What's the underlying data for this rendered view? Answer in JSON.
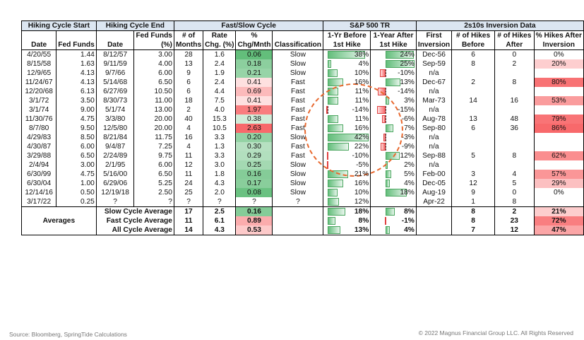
{
  "headers": {
    "hiking_start": "Hiking Cycle Start",
    "hiking_end": "Hiking Cycle End",
    "fast_slow": "Fast/Slow Cycle",
    "sp500": "S&P 500 TR",
    "inversion": "2s10s Inversion Data",
    "fed_funds_top": "Fed Funds",
    "num_of": "# of",
    "rate": "Rate",
    "pct": "%",
    "yr_before": "1-Yr Before",
    "yr_after": "1-Year After",
    "first": "First",
    "hikes_before_top": "# of Hikes",
    "hikes_after_top": "# of Hikes",
    "pct_hikes_after": "% Hikes After",
    "date": "Date",
    "fed_funds": "Fed Funds",
    "date2": "Date",
    "fed_funds_pct": "(%)",
    "months": "Months",
    "chg_pct": "Chg. (%)",
    "chg_mnth": "Chg/Mnth",
    "classification": "Classification",
    "first_hike_a": "1st Hike",
    "first_hike_b": "1st Hike",
    "inversion_col": "Inversion",
    "before": "Before",
    "after": "After",
    "inversion_col2": "Inversion"
  },
  "rows": [
    {
      "start": "4/20/55",
      "ff_start": "1.44",
      "end": "8/12/57",
      "ff_end": "3.00",
      "months": "28",
      "rate_chg": "1.6",
      "chg_mnth": "0.06",
      "cls": "Slow",
      "before": "38%",
      "after": "24%",
      "first_inv": "Dec-56",
      "hb": "6",
      "ha": "0",
      "pha": "0%"
    },
    {
      "start": "8/15/58",
      "ff_start": "1.63",
      "end": "9/11/59",
      "ff_end": "4.00",
      "months": "13",
      "rate_chg": "2.4",
      "chg_mnth": "0.18",
      "cls": "Slow",
      "before": "4%",
      "after": "25%",
      "first_inv": "Sep-59",
      "hb": "8",
      "ha": "2",
      "pha": "20%"
    },
    {
      "start": "12/9/65",
      "ff_start": "4.13",
      "end": "9/7/66",
      "ff_end": "6.00",
      "months": "9",
      "rate_chg": "1.9",
      "chg_mnth": "0.21",
      "cls": "Slow",
      "before": "10%",
      "after": "-10%",
      "first_inv": "n/a",
      "hb": "",
      "ha": "",
      "pha": ""
    },
    {
      "start": "11/24/67",
      "ff_start": "4.13",
      "end": "5/14/68",
      "ff_end": "6.50",
      "months": "6",
      "rate_chg": "2.4",
      "chg_mnth": "0.41",
      "cls": "Fast",
      "before": "16%",
      "after": "13%",
      "first_inv": "Dec-67",
      "hb": "2",
      "ha": "8",
      "pha": "80%"
    },
    {
      "start": "12/20/68",
      "ff_start": "6.13",
      "end": "6/27/69",
      "ff_end": "10.50",
      "months": "6",
      "rate_chg": "4.4",
      "chg_mnth": "0.69",
      "cls": "Fast",
      "before": "11%",
      "after": "-14%",
      "first_inv": "n/a",
      "hb": "",
      "ha": "",
      "pha": ""
    },
    {
      "start": "3/1/72",
      "ff_start": "3.50",
      "end": "8/30/73",
      "ff_end": "11.00",
      "months": "18",
      "rate_chg": "7.5",
      "chg_mnth": "0.41",
      "cls": "Fast",
      "before": "11%",
      "after": "3%",
      "first_inv": "Mar-73",
      "hb": "14",
      "ha": "16",
      "pha": "53%"
    },
    {
      "start": "3/1/74",
      "ff_start": "9.00",
      "end": "5/1/74",
      "ff_end": "13.00",
      "months": "2",
      "rate_chg": "4.0",
      "chg_mnth": "1.97",
      "cls": "Fast",
      "before": "-14%",
      "after": "-15%",
      "first_inv": "n/a",
      "hb": "",
      "ha": "",
      "pha": ""
    },
    {
      "start": "11/30/76",
      "ff_start": "4.75",
      "end": "3/3/80",
      "ff_end": "20.00",
      "months": "40",
      "rate_chg": "15.3",
      "chg_mnth": "0.38",
      "cls": "Fast",
      "before": "11%",
      "after": "-6%",
      "first_inv": "Aug-78",
      "hb": "13",
      "ha": "48",
      "pha": "79%"
    },
    {
      "start": "8/7/80",
      "ff_start": "9.50",
      "end": "12/5/80",
      "ff_end": "20.00",
      "months": "4",
      "rate_chg": "10.5",
      "chg_mnth": "2.63",
      "cls": "Fast",
      "before": "16%",
      "after": "7%",
      "first_inv": "Sep-80",
      "hb": "6",
      "ha": "36",
      "pha": "86%"
    },
    {
      "start": "4/29/83",
      "ff_start": "8.50",
      "end": "8/21/84",
      "ff_end": "11.75",
      "months": "16",
      "rate_chg": "3.3",
      "chg_mnth": "0.20",
      "cls": "Slow",
      "before": "42%",
      "after": "-3%",
      "first_inv": "n/a",
      "hb": "",
      "ha": "",
      "pha": ""
    },
    {
      "start": "4/30/87",
      "ff_start": "6.00",
      "end": "9/4/87",
      "ff_end": "7.25",
      "months": "4",
      "rate_chg": "1.3",
      "chg_mnth": "0.30",
      "cls": "Fast",
      "before": "22%",
      "after": "-9%",
      "first_inv": "n/a",
      "hb": "",
      "ha": "",
      "pha": ""
    },
    {
      "start": "3/29/88",
      "ff_start": "6.50",
      "end": "2/24/89",
      "ff_end": "9.75",
      "months": "11",
      "rate_chg": "3.3",
      "chg_mnth": "0.29",
      "cls": "Fast",
      "before": "-10%",
      "after": "12%",
      "first_inv": "Sep-88",
      "hb": "5",
      "ha": "8",
      "pha": "62%"
    },
    {
      "start": "2/4/94",
      "ff_start": "3.00",
      "end": "2/1/95",
      "ff_end": "6.00",
      "months": "12",
      "rate_chg": "3.0",
      "chg_mnth": "0.25",
      "cls": "Slow",
      "before": "-5%",
      "after": "2%",
      "first_inv": "n/a",
      "hb": "",
      "ha": "",
      "pha": ""
    },
    {
      "start": "6/30/99",
      "ff_start": "4.75",
      "end": "5/16/00",
      "ff_end": "6.50",
      "months": "11",
      "rate_chg": "1.8",
      "chg_mnth": "0.16",
      "cls": "Slow",
      "before": "21%",
      "after": "5%",
      "first_inv": "Feb-00",
      "hb": "3",
      "ha": "4",
      "pha": "57%"
    },
    {
      "start": "6/30/04",
      "ff_start": "1.00",
      "end": "6/29/06",
      "ff_end": "5.25",
      "months": "24",
      "rate_chg": "4.3",
      "chg_mnth": "0.17",
      "cls": "Slow",
      "before": "16%",
      "after": "4%",
      "first_inv": "Dec-05",
      "hb": "12",
      "ha": "5",
      "pha": "29%"
    },
    {
      "start": "12/14/16",
      "ff_start": "0.50",
      "end": "12/19/18",
      "ff_end": "2.50",
      "months": "25",
      "rate_chg": "2.0",
      "chg_mnth": "0.08",
      "cls": "Slow",
      "before": "10%",
      "after": "18%",
      "first_inv": "Aug-19",
      "hb": "9",
      "ha": "0",
      "pha": "0%"
    },
    {
      "start": "3/17/22",
      "ff_start": "0.25",
      "end": "?",
      "ff_end": "?",
      "months": "?",
      "rate_chg": "?",
      "chg_mnth": "?",
      "cls": "?",
      "before": "12%",
      "after": "",
      "first_inv": "Apr-22",
      "hb": "1",
      "ha": "8",
      "pha": ""
    }
  ],
  "averages_label": "Averages",
  "averages": [
    {
      "label": "Slow Cycle Average",
      "months": "17",
      "rate_chg": "2.5",
      "chg_mnth": "0.16",
      "before": "18%",
      "after": "8%",
      "hb": "8",
      "ha": "2",
      "pha": "21%"
    },
    {
      "label": "Fast Cycle Average",
      "months": "11",
      "rate_chg": "6.1",
      "chg_mnth": "0.89",
      "before": "8%",
      "after": "-1%",
      "hb": "8",
      "ha": "23",
      "pha": "72%"
    },
    {
      "label": "All Cycle Average",
      "months": "14",
      "rate_chg": "4.3",
      "chg_mnth": "0.53",
      "before": "13%",
      "after": "4%",
      "hb": "7",
      "ha": "12",
      "pha": "47%"
    }
  ],
  "colors": {
    "green": "#63be7b",
    "red": "#f8696b",
    "header_bg": "#dce6f1",
    "highlight": "#e8682e"
  },
  "footer": {
    "source": "Source: Bloomberg, SpringTide Calculations",
    "copyright": "© 2022 Magnus Financial Group LLC. All Rights Reserved"
  }
}
